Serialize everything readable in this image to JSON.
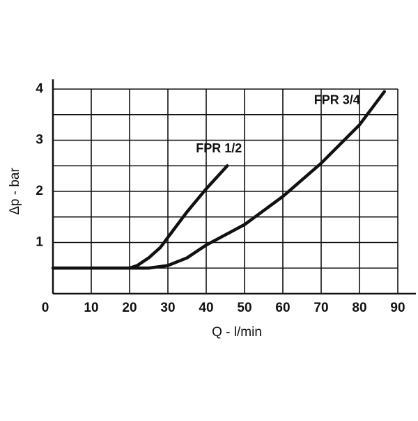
{
  "chart_data": {
    "type": "line",
    "x_label": "Q - l/min",
    "y_label": "Δp - bar",
    "xlim": [
      0,
      90
    ],
    "ylim": [
      0,
      4
    ],
    "xticks": [
      0,
      10,
      20,
      30,
      40,
      50,
      60,
      70,
      80,
      90
    ],
    "yticks": [
      1,
      2,
      3,
      4
    ],
    "y_grid": [
      0.5,
      1,
      1.5,
      2,
      2.5,
      3,
      3.5,
      4
    ],
    "grid": true,
    "series": [
      {
        "name": "FPR 1/2",
        "color": "#111111",
        "x": [
          0,
          20,
          22,
          25,
          28,
          30,
          35,
          40,
          45.5
        ],
        "values": [
          0.5,
          0.5,
          0.55,
          0.7,
          0.9,
          1.1,
          1.6,
          2.05,
          2.5
        ]
      },
      {
        "name": "FPR 3/4",
        "color": "#111111",
        "x": [
          20,
          25,
          30,
          35,
          40,
          50,
          60,
          70,
          80,
          86.5
        ],
        "values": [
          0.5,
          0.5,
          0.55,
          0.7,
          0.95,
          1.35,
          1.9,
          2.55,
          3.3,
          3.95
        ]
      }
    ]
  }
}
